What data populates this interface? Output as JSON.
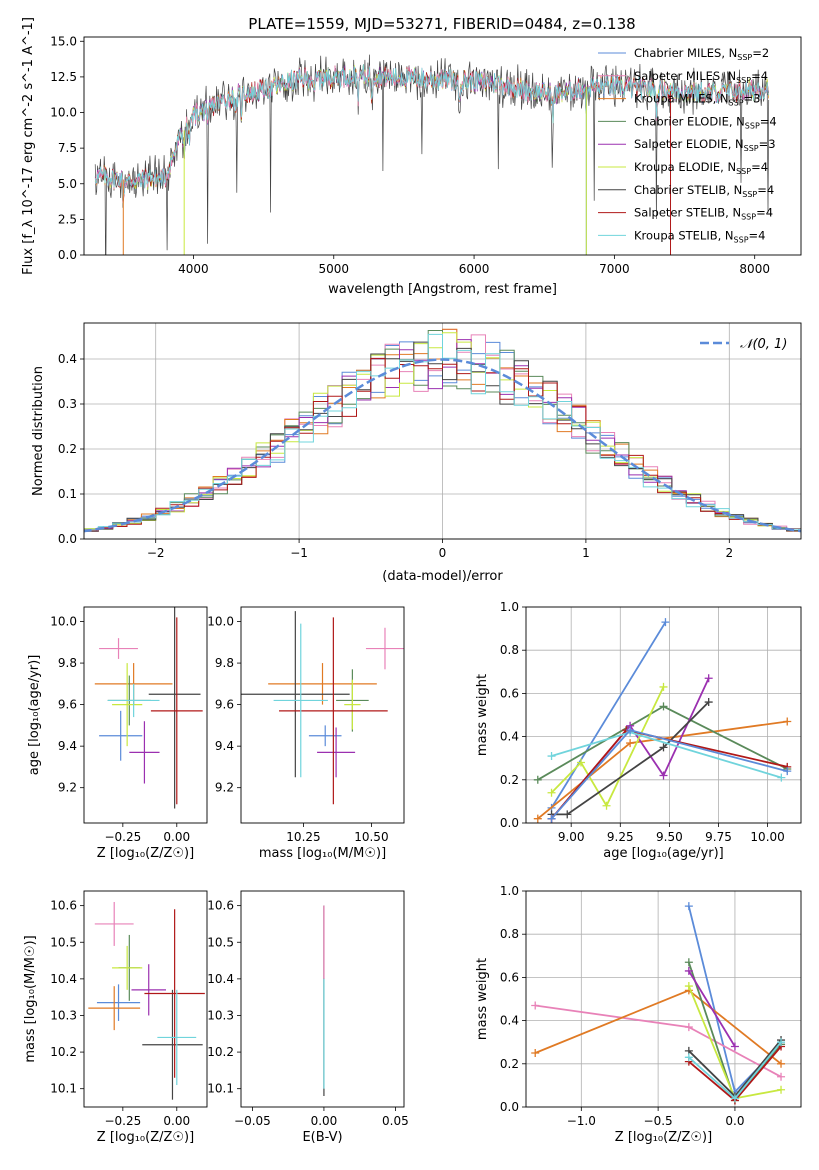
{
  "figure_title": "PLATE=1559, MJD=53271, FIBERID=0484, z=0.138",
  "series_styles": [
    {
      "name": "Chabrier MILES",
      "nssp": "2",
      "color": "#5b8bd9"
    },
    {
      "name": "Salpeter MILES",
      "nssp": "4",
      "color": "#e882b8"
    },
    {
      "name": "Kroupa MILES",
      "nssp": "3",
      "color": "#e07a24"
    },
    {
      "name": "Chabrier ELODIE",
      "nssp": "4",
      "color": "#5a8a5a"
    },
    {
      "name": "Salpeter ELODIE",
      "nssp": "3",
      "color": "#9b30b0"
    },
    {
      "name": "Kroupa ELODIE",
      "nssp": "4",
      "color": "#c8e840"
    },
    {
      "name": "Chabrier STELIB",
      "nssp": "4",
      "color": "#444444"
    },
    {
      "name": "Salpeter STELIB",
      "nssp": "4",
      "color": "#b01818"
    },
    {
      "name": "Kroupa STELIB",
      "nssp": "4",
      "color": "#70d4dc"
    }
  ],
  "chart_data": [
    {
      "id": "spectrum",
      "type": "line",
      "xlabel": "wavelength [Angstrom, rest frame]",
      "ylabel": "Flux [f_λ 10^-17 erg cm^-2 s^-1 A^-1]",
      "xlim": [
        3220,
        8330
      ],
      "ylim": [
        0,
        15.3
      ],
      "xticks": [
        4000,
        5000,
        6000,
        7000,
        8000
      ],
      "yticks": [
        0.0,
        2.5,
        5.0,
        7.5,
        10.0,
        12.5,
        15.0
      ],
      "legend_position": "right",
      "continuum": {
        "x": [
          3300,
          3500,
          3600,
          3700,
          3800,
          3900,
          4000,
          4100,
          4200,
          4300,
          4400,
          4500,
          4600,
          4700,
          4800,
          4900,
          5000,
          5200,
          5400,
          5600,
          5800,
          6000,
          6200,
          6400,
          6600,
          6800,
          7000,
          7200,
          7400,
          7600,
          7800,
          8000,
          8100
        ],
        "y": [
          5.6,
          5.3,
          5.2,
          5.4,
          5.4,
          8.2,
          9.8,
          10.3,
          10.8,
          11.2,
          11.4,
          11.6,
          11.8,
          12.2,
          12.4,
          12.4,
          12.5,
          12.6,
          12.5,
          12.4,
          12.3,
          12.2,
          12.0,
          11.5,
          11.3,
          11.8,
          11.8,
          11.7,
          11.5,
          11.4,
          11.4,
          11.6,
          11.8
        ]
      },
      "absorption_lines": [
        3500,
        3934,
        3969,
        4101,
        4304,
        4340,
        4861,
        5175,
        5270,
        5893,
        6563,
        6800,
        7300
      ]
    },
    {
      "id": "residuals",
      "type": "histogram",
      "xlabel": "(data-model)/error",
      "ylabel": "Normed distribution",
      "xlim": [
        -2.5,
        2.5
      ],
      "ylim": [
        0,
        0.48
      ],
      "xticks": [
        -2,
        -1,
        0,
        1,
        2
      ],
      "xtick_labels": [
        "−2",
        "−1",
        "0",
        "1",
        "2"
      ],
      "yticks": [
        0.0,
        0.1,
        0.2,
        0.3,
        0.4
      ],
      "bin_width": 0.1,
      "grid": true,
      "reference_curve": {
        "label": "N(0,1)",
        "color": "#5b8bd9",
        "style": "dashed"
      }
    },
    {
      "id": "age_vs_metallicity",
      "type": "scatter",
      "xlabel": "Z [log10(Z/Z☉)]",
      "ylabel": "age  [log10(age/yr)]",
      "xlim": [
        -0.43,
        0.14
      ],
      "ylim": [
        9.03,
        10.07
      ],
      "xticks": [
        -0.25,
        0.0
      ],
      "xtick_labels": [
        "−0.25",
        "0.00"
      ],
      "yticks": [
        9.2,
        9.4,
        9.6,
        9.8,
        10.0
      ],
      "points": [
        {
          "x": -0.26,
          "y": 9.45,
          "xerr": 0.1,
          "yerr": 0.12
        },
        {
          "x": -0.27,
          "y": 9.87,
          "xerr": 0.09,
          "yerr": 0.05
        },
        {
          "x": -0.2,
          "y": 9.7,
          "xerr": 0.18,
          "yerr": 0.1
        },
        {
          "x": -0.22,
          "y": 9.62,
          "xerr": 0.1,
          "yerr": 0.12
        },
        {
          "x": -0.15,
          "y": 9.37,
          "xerr": 0.07,
          "yerr": 0.15
        },
        {
          "x": -0.23,
          "y": 9.6,
          "xerr": 0.07,
          "yerr": 0.2
        },
        {
          "x": -0.01,
          "y": 9.65,
          "xerr": 0.12,
          "yerr": 0.55
        },
        {
          "x": 0.0,
          "y": 9.57,
          "xerr": 0.12,
          "yerr": 0.45
        },
        {
          "x": -0.2,
          "y": 9.62,
          "xerr": 0.12,
          "yerr": 0.08
        }
      ]
    },
    {
      "id": "age_vs_mass",
      "type": "scatter",
      "xlabel": "mass [log10(M/M☉)]",
      "ylabel": "",
      "xlim": [
        10.02,
        10.62
      ],
      "ylim": [
        9.03,
        10.07
      ],
      "xticks": [
        10.25,
        10.5
      ],
      "xtick_labels": [
        "10.25",
        "10.50"
      ],
      "yticks": [
        9.2,
        9.4,
        9.6,
        9.8,
        10.0
      ],
      "points": [
        {
          "x": 10.33,
          "y": 9.45,
          "xerr": 0.06,
          "yerr": 0.05
        },
        {
          "x": 10.55,
          "y": 9.87,
          "xerr": 0.07,
          "yerr": 0.1
        },
        {
          "x": 10.32,
          "y": 9.7,
          "xerr": 0.2,
          "yerr": 0.1
        },
        {
          "x": 10.43,
          "y": 9.62,
          "xerr": 0.06,
          "yerr": 0.15
        },
        {
          "x": 10.37,
          "y": 9.37,
          "xerr": 0.07,
          "yerr": 0.12
        },
        {
          "x": 10.43,
          "y": 9.6,
          "xerr": 0.03,
          "yerr": 0.12
        },
        {
          "x": 10.22,
          "y": 9.65,
          "xerr": 0.2,
          "yerr": 0.4
        },
        {
          "x": 10.36,
          "y": 9.57,
          "xerr": 0.2,
          "yerr": 0.45
        },
        {
          "x": 10.24,
          "y": 9.62,
          "xerr": 0.1,
          "yerr": 0.37
        }
      ]
    },
    {
      "id": "mass_weight_vs_age",
      "type": "line",
      "xlabel": "age  [log10(age/yr)]",
      "ylabel": "mass weight",
      "xlim": [
        8.77,
        10.17
      ],
      "ylim": [
        0,
        1.0
      ],
      "xticks": [
        9.0,
        9.25,
        9.5,
        9.75,
        10.0
      ],
      "xtick_labels": [
        "9.00",
        "9.25",
        "9.50",
        "9.75",
        "10.00"
      ],
      "yticks": [
        0.0,
        0.2,
        0.4,
        0.6,
        0.8,
        1.0
      ],
      "grid": true,
      "series": [
        {
          "x": [
            8.9,
            9.48
          ],
          "y": [
            0.07,
            0.93
          ]
        },
        {
          "x": 8.9,
          "y": 0
        },
        {
          "x": [
            8.83,
            9.3,
            10.1
          ],
          "y": [
            0.02,
            0.37,
            0.47
          ]
        },
        {
          "x": [
            8.83,
            9.47,
            10.1
          ],
          "y": [
            0.2,
            0.54,
            0.25
          ]
        },
        {
          "x": [
            8.9,
            9.3,
            9.47,
            9.7
          ],
          "y": [
            0.02,
            0.45,
            0.22,
            0.67
          ]
        },
        {
          "x": [
            8.9,
            9.05,
            9.18,
            9.47
          ],
          "y": [
            0.14,
            0.28,
            0.08,
            0.63
          ]
        },
        {
          "x": [
            8.9,
            8.98,
            9.47,
            9.7
          ],
          "y": [
            0.04,
            0.04,
            0.35,
            0.56
          ]
        },
        {
          "x": [
            8.9,
            9.28,
            10.1
          ],
          "y": [
            0.02,
            0.43,
            0.26
          ]
        },
        {
          "x": [
            8.9,
            9.3,
            10.07
          ],
          "y": [
            0.31,
            0.42,
            0.21
          ]
        },
        {
          "x": [
            8.9,
            9.3,
            10.1
          ],
          "y": [
            0.02,
            0.43,
            0.24
          ]
        }
      ]
    },
    {
      "id": "mass_vs_metallicity",
      "type": "scatter",
      "xlabel": "Z [log10(Z/Z☉)]",
      "ylabel": "mass [log10(M/M☉)]",
      "xlim": [
        -0.43,
        0.14
      ],
      "ylim": [
        10.05,
        10.64
      ],
      "xticks": [
        -0.25,
        0.0
      ],
      "xtick_labels": [
        "−0.25",
        "0.00"
      ],
      "yticks": [
        10.1,
        10.2,
        10.3,
        10.4,
        10.5,
        10.6
      ],
      "points": [
        {
          "x": -0.27,
          "y": 10.335,
          "xerr": 0.1,
          "yerr": 0.05
        },
        {
          "x": -0.29,
          "y": 10.55,
          "xerr": 0.09,
          "yerr": 0.06
        },
        {
          "x": -0.29,
          "y": 10.32,
          "xerr": 0.12,
          "yerr": 0.06
        },
        {
          "x": -0.22,
          "y": 10.43,
          "xerr": 0.05,
          "yerr": 0.09
        },
        {
          "x": -0.13,
          "y": 10.37,
          "xerr": 0.08,
          "yerr": 0.07
        },
        {
          "x": -0.23,
          "y": 10.43,
          "xerr": 0.07,
          "yerr": 0.06
        },
        {
          "x": -0.02,
          "y": 10.22,
          "xerr": 0.14,
          "yerr": 0.15
        },
        {
          "x": -0.01,
          "y": 10.36,
          "xerr": 0.14,
          "yerr": 0.23
        },
        {
          "x": 0.0,
          "y": 10.24,
          "xerr": 0.09,
          "yerr": 0.13
        }
      ]
    },
    {
      "id": "mass_vs_reddening",
      "type": "scatter",
      "xlabel": "E(B-V)",
      "ylabel": "",
      "xlim": [
        -0.058,
        0.056
      ],
      "ylim": [
        10.05,
        10.64
      ],
      "xticks": [
        -0.05,
        0.0,
        0.05
      ],
      "xtick_labels": [
        "−0.05",
        "0.00",
        "0.05"
      ],
      "yticks": [
        10.1,
        10.2,
        10.3,
        10.4,
        10.5,
        10.6
      ],
      "points": [
        {
          "x": 0.0,
          "y": 10.34,
          "yerr": 0.26
        },
        {
          "x": 0.0,
          "y": 10.5,
          "yerr": 0.1
        },
        {
          "x": 0.0,
          "y": 10.25,
          "yerr": 0.15
        }
      ]
    },
    {
      "id": "mass_weight_vs_metallicity",
      "type": "line",
      "xlabel": "Z [log10(Z/Z☉)]",
      "ylabel": "mass weight",
      "xlim": [
        -1.36,
        0.43
      ],
      "ylim": [
        0,
        1.0
      ],
      "xticks": [
        -1.0,
        -0.5,
        0.0
      ],
      "xtick_labels": [
        "−1.0",
        "−0.5",
        "0.0"
      ],
      "yticks": [
        0.0,
        0.2,
        0.4,
        0.6,
        0.8,
        1.0
      ],
      "grid": true,
      "series": [
        {
          "x": [
            -0.3,
            0.0,
            0.3
          ],
          "y": [
            0.93,
            0.07,
            0.29
          ]
        },
        {
          "x": [
            -1.3,
            -0.3,
            0.3
          ],
          "y": [
            0.47,
            0.37,
            0.14
          ]
        },
        {
          "x": [
            -1.3,
            -0.3,
            0.3
          ],
          "y": [
            0.25,
            0.54,
            0.2
          ]
        },
        {
          "x": [
            -0.3,
            0.0,
            0.3
          ],
          "y": [
            0.67,
            0.03,
            0.29
          ]
        },
        {
          "x": [
            -0.3,
            0.0
          ],
          "y": [
            0.63,
            0.28
          ]
        },
        {
          "x": [
            -0.3,
            0.0,
            0.3
          ],
          "y": [
            0.56,
            0.04,
            0.08
          ]
        },
        {
          "x": [
            -0.3,
            0.0,
            0.3
          ],
          "y": [
            0.26,
            0.05,
            0.31
          ]
        },
        {
          "x": [
            -0.3,
            0.0,
            0.3
          ],
          "y": [
            0.21,
            0.03,
            0.28
          ]
        },
        {
          "x": [
            -0.3,
            0.0,
            0.3
          ],
          "y": [
            0.23,
            0.04,
            0.3
          ]
        }
      ]
    }
  ]
}
